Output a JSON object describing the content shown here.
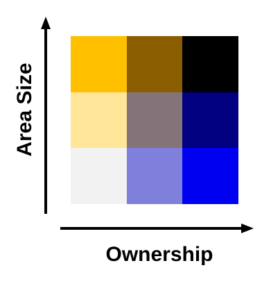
{
  "axes": {
    "x_label": "Ownership",
    "y_label": "Area Size"
  },
  "legend_grid": {
    "rows": [
      [
        "#ffc000",
        "#8a5d00",
        "#000000"
      ],
      [
        "#ffe699",
        "#85737a",
        "#000080"
      ],
      [
        "#f2f2f2",
        "#7f7fdc",
        "#0000f0"
      ]
    ]
  }
}
